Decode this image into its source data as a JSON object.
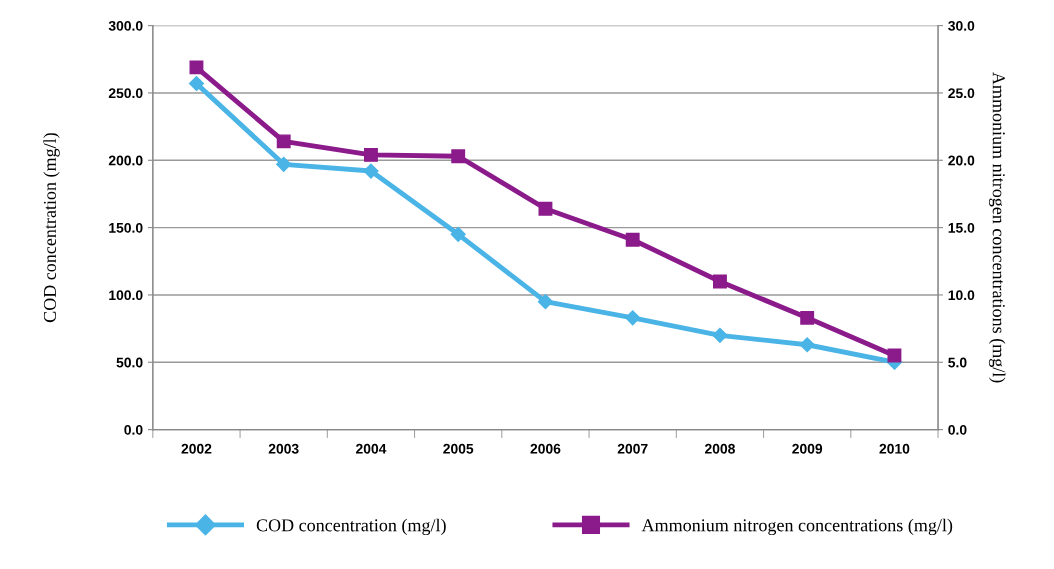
{
  "chart_data": {
    "type": "line",
    "categories": [
      "2002",
      "2003",
      "2004",
      "2005",
      "2006",
      "2007",
      "2008",
      "2009",
      "2010"
    ],
    "series": [
      {
        "name": "COD concentration (mg/l)",
        "color": "#4ab4e6",
        "values": [
          257,
          197,
          192,
          145,
          95,
          83,
          70,
          63,
          50
        ],
        "marker": "diamond"
      },
      {
        "name": "Ammonium nitrogen concentrations (mg/l)",
        "color": "#8b1a8b",
        "values": [
          26.9,
          21.4,
          20.4,
          20.3,
          16.4,
          14.1,
          11.0,
          8.3,
          5.5
        ],
        "marker": "square",
        "axis": "y2"
      }
    ],
    "ylabel": "COD concentration (mg/l)",
    "y2label": "Ammonium nitrogen concentrations (mg/l)",
    "ylim": [
      0,
      300
    ],
    "yticks": [
      {
        "value": 0,
        "label": "0.0"
      },
      {
        "value": 50,
        "label": "50.0"
      },
      {
        "value": 100,
        "label": "100.0"
      },
      {
        "value": 150,
        "label": "150.0"
      },
      {
        "value": 200,
        "label": "200.0"
      },
      {
        "value": 250,
        "label": "250.0"
      },
      {
        "value": 300,
        "label": "300.0"
      }
    ],
    "y2lim": [
      0,
      30
    ],
    "y2ticks": [
      {
        "value": 0,
        "label": "0.0"
      },
      {
        "value": 5,
        "label": "5.0"
      },
      {
        "value": 10,
        "label": "10.0"
      },
      {
        "value": 15,
        "label": "15.0"
      },
      {
        "value": 20,
        "label": "20.0"
      },
      {
        "value": 25,
        "label": "25.0"
      },
      {
        "value": 30,
        "label": "30.0"
      }
    ],
    "grid": "y",
    "legend": "bottom",
    "line_style": "solid"
  }
}
